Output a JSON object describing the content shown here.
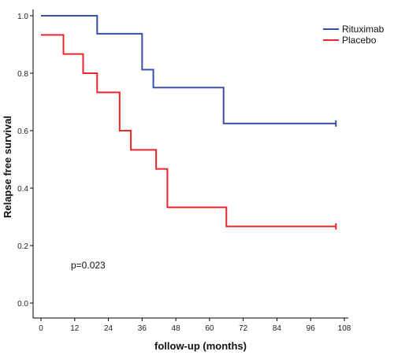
{
  "chart_data": {
    "type": "line",
    "step": true,
    "xlabel": "follow-up (months)",
    "ylabel": "Relapse free survival",
    "xlim": [
      0,
      108
    ],
    "ylim": [
      0,
      1.0
    ],
    "x_ticks": [
      "0",
      "12",
      "24",
      "36",
      "48",
      "60",
      "72",
      "84",
      "96",
      "108"
    ],
    "y_ticks": [
      "0.0",
      "0.2",
      "0.4",
      "0.6",
      "0.8",
      "1.0"
    ],
    "grid": false,
    "legend_position": "top-right",
    "annotation": "p=0.023",
    "series": [
      {
        "name": "Rituximab",
        "color": "#3b4fa8",
        "censor_end": true,
        "points": [
          [
            0,
            1.0
          ],
          [
            20,
            0.9375
          ],
          [
            36,
            0.8125
          ],
          [
            40,
            0.75
          ],
          [
            65,
            0.625
          ],
          [
            105,
            0.625
          ]
        ]
      },
      {
        "name": "Placebo",
        "color": "#e8262b",
        "censor_end": true,
        "points": [
          [
            0,
            0.9333
          ],
          [
            8,
            0.8667
          ],
          [
            15,
            0.8
          ],
          [
            20,
            0.7333
          ],
          [
            28,
            0.6
          ],
          [
            32,
            0.5333
          ],
          [
            41,
            0.4667
          ],
          [
            45,
            0.3333
          ],
          [
            66,
            0.2667
          ],
          [
            105,
            0.2667
          ]
        ]
      }
    ]
  }
}
